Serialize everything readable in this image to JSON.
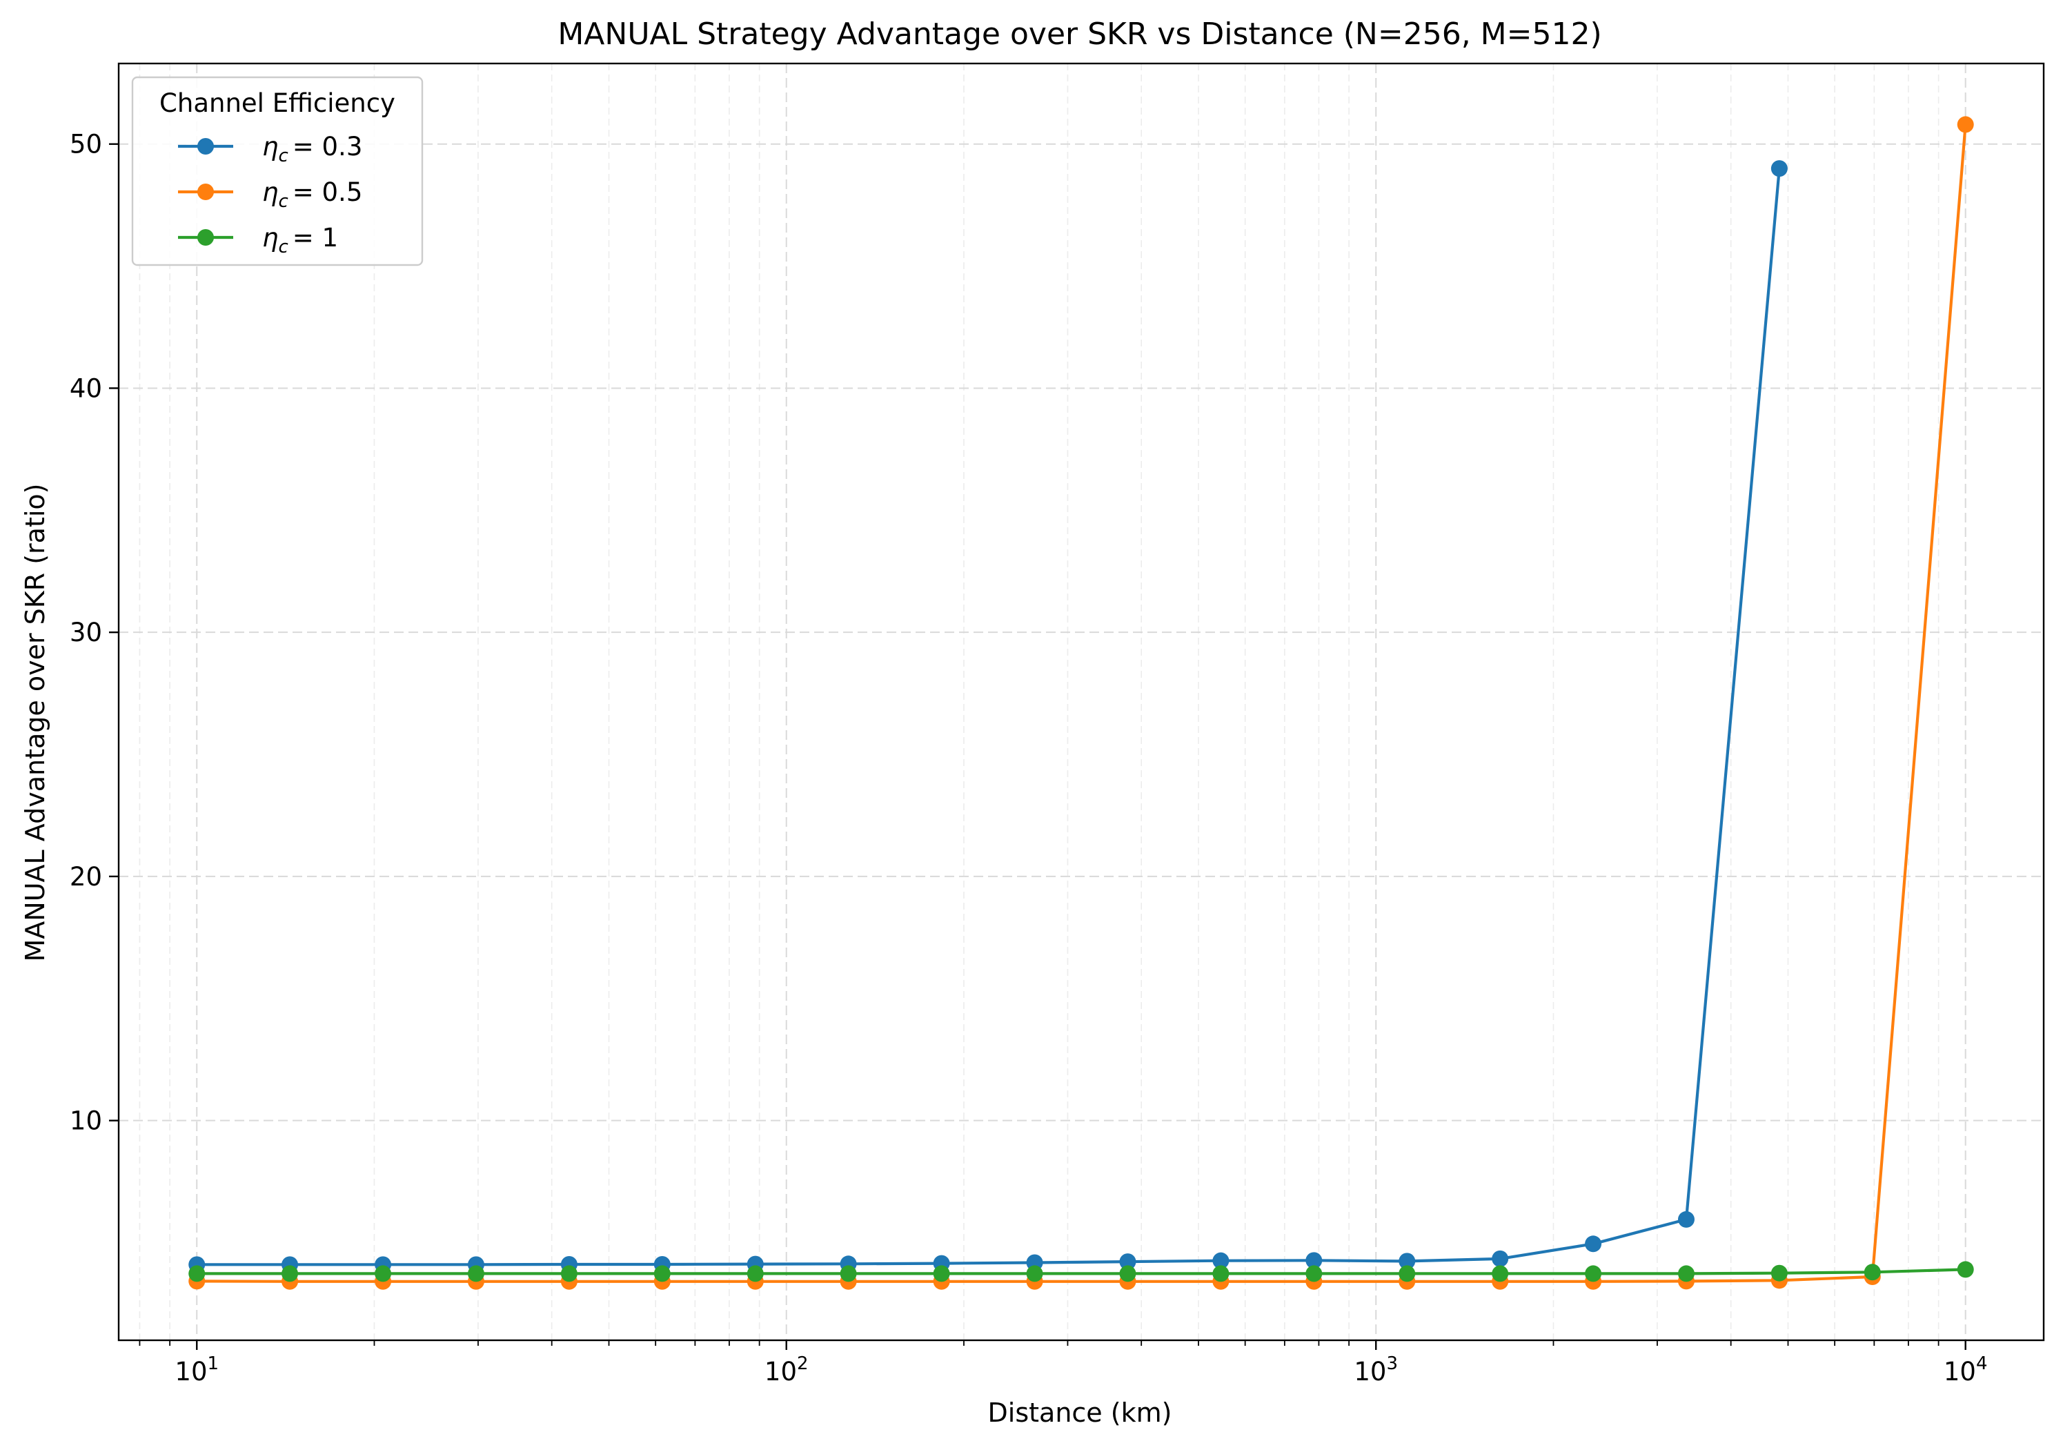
{
  "chart_data": {
    "type": "line",
    "title": "MANUAL Strategy Advantage over SKR vs Distance (N=256, M=512)",
    "xlabel": "Distance (km)",
    "ylabel": "MANUAL Advantage over SKR (ratio)",
    "xscale": "log",
    "xlim": [
      7.37,
      13570
    ],
    "ylim": [
      1.0,
      53.3
    ],
    "xticks": [
      {
        "value": 10,
        "base": "10",
        "exp": "1"
      },
      {
        "value": 100,
        "base": "10",
        "exp": "2"
      },
      {
        "value": 1000,
        "base": "10",
        "exp": "3"
      },
      {
        "value": 10000,
        "base": "10",
        "exp": "4"
      }
    ],
    "yticks": [
      10,
      20,
      30,
      40,
      50
    ],
    "grid": true,
    "legend": {
      "title": "Channel Efficiency",
      "placement": "top-left"
    },
    "x": [
      10,
      14.38,
      20.69,
      29.76,
      42.81,
      61.58,
      88.59,
      127.4,
      183.3,
      263.7,
      379.3,
      545.6,
      784.8,
      1129,
      1624,
      2336,
      3360,
      4833,
      6952,
      10000
    ],
    "series": [
      {
        "name_base": "η",
        "name_sub": "c",
        "name_value": "= 0.3",
        "color": "#1f77b4",
        "values": [
          4.1,
          4.1,
          4.1,
          4.1,
          4.11,
          4.11,
          4.12,
          4.13,
          4.15,
          4.18,
          4.22,
          4.26,
          4.27,
          4.24,
          4.34,
          4.95,
          5.95,
          49.0,
          null,
          null
        ]
      },
      {
        "name_base": "η",
        "name_sub": "c",
        "name_value": "= 0.5",
        "color": "#ff7f0e",
        "values": [
          3.42,
          3.41,
          3.41,
          3.41,
          3.41,
          3.41,
          3.41,
          3.41,
          3.41,
          3.41,
          3.41,
          3.41,
          3.41,
          3.41,
          3.41,
          3.41,
          3.42,
          3.45,
          3.6,
          50.8
        ]
      },
      {
        "name_base": "η",
        "name_sub": "c",
        "name_value": "= 1",
        "color": "#2ca02c",
        "values": [
          3.73,
          3.73,
          3.73,
          3.73,
          3.73,
          3.73,
          3.73,
          3.73,
          3.73,
          3.73,
          3.73,
          3.73,
          3.73,
          3.73,
          3.73,
          3.73,
          3.73,
          3.75,
          3.79,
          3.9
        ]
      }
    ]
  }
}
